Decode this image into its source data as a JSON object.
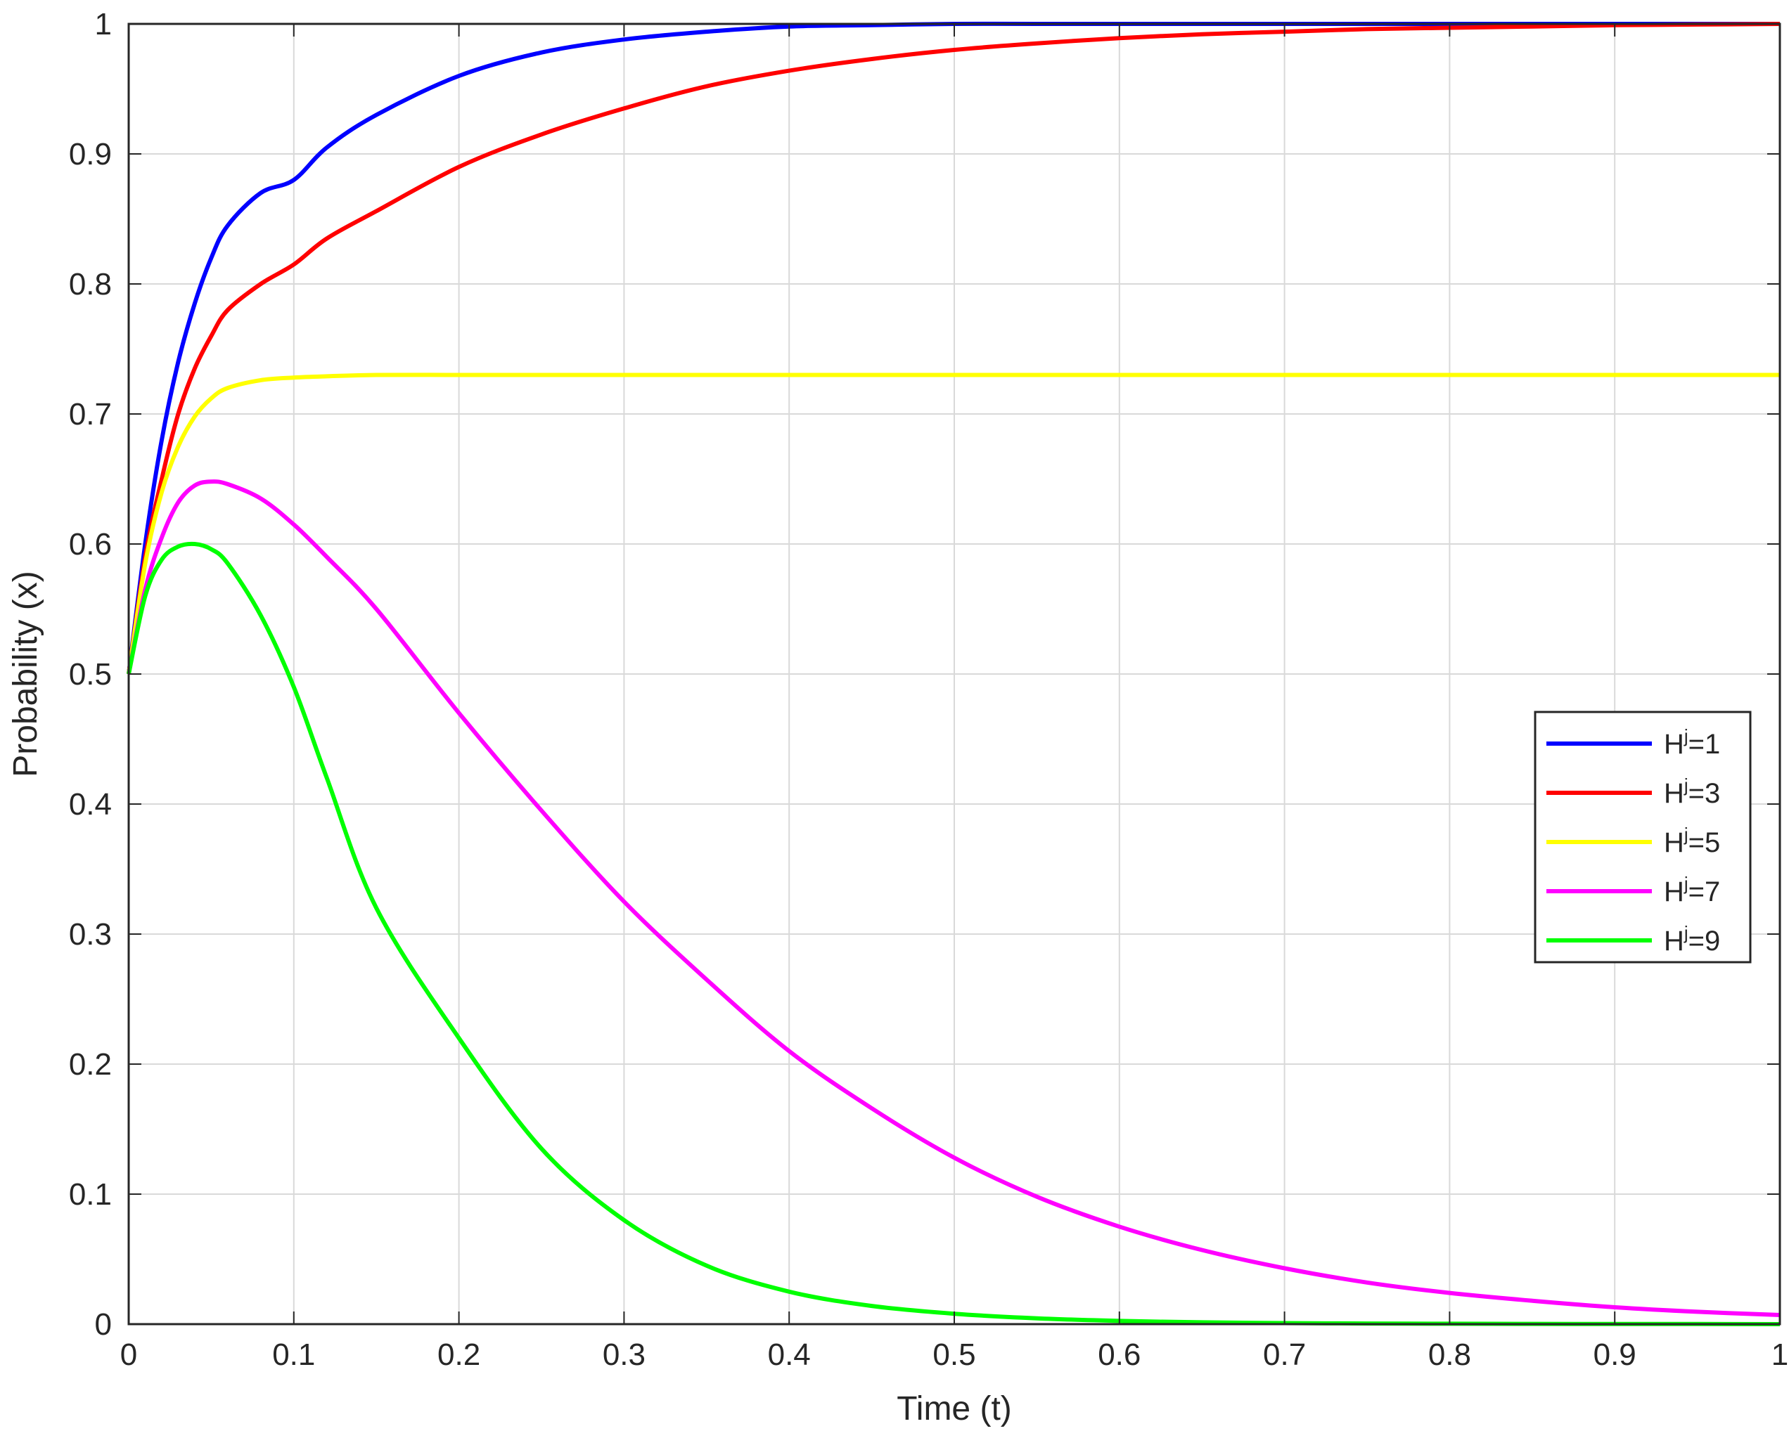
{
  "chart_data": {
    "type": "line",
    "title": "",
    "xlabel": "Time (t)",
    "ylabel": "Probability (x)",
    "xlim": [
      0,
      1
    ],
    "ylim": [
      0,
      1
    ],
    "xticks": [
      "0",
      "0.1",
      "0.2",
      "0.3",
      "0.4",
      "0.5",
      "0.6",
      "0.7",
      "0.8",
      "0.9",
      "1"
    ],
    "yticks": [
      "0",
      "0.1",
      "0.2",
      "0.3",
      "0.4",
      "0.5",
      "0.6",
      "0.7",
      "0.8",
      "0.9",
      "1"
    ],
    "grid": true,
    "legend_position": "right",
    "x": [
      0,
      0.01,
      0.02,
      0.03,
      0.04,
      0.05,
      0.06,
      0.08,
      0.1,
      0.12,
      0.15,
      0.2,
      0.25,
      0.3,
      0.35,
      0.4,
      0.45,
      0.5,
      0.55,
      0.6,
      0.65,
      0.7,
      0.75,
      0.8,
      0.85,
      0.9,
      0.95,
      1.0
    ],
    "series": [
      {
        "name_base": "H",
        "name_sup": "j",
        "name_rest": "=1",
        "color": "#0000ff",
        "values": [
          0.5,
          0.6,
          0.68,
          0.74,
          0.785,
          0.82,
          0.845,
          0.87,
          0.88,
          0.905,
          0.93,
          0.96,
          0.978,
          0.988,
          0.994,
          0.998,
          0.999,
          1.0,
          1.0,
          1.0,
          1.0,
          1.0,
          1.0,
          1.0,
          1.0,
          1.0,
          1.0,
          1.0
        ]
      },
      {
        "name_base": "H",
        "name_sup": "j",
        "name_rest": "=3",
        "color": "#ff0000",
        "values": [
          0.5,
          0.59,
          0.65,
          0.7,
          0.735,
          0.76,
          0.78,
          0.8,
          0.815,
          0.835,
          0.856,
          0.89,
          0.915,
          0.935,
          0.952,
          0.964,
          0.973,
          0.98,
          0.985,
          0.989,
          0.992,
          0.994,
          0.996,
          0.997,
          0.998,
          0.999,
          0.9995,
          1.0
        ]
      },
      {
        "name_base": "H",
        "name_sup": "j",
        "name_rest": "=5",
        "color": "#ffff00",
        "values": [
          0.5,
          0.585,
          0.64,
          0.675,
          0.698,
          0.712,
          0.72,
          0.726,
          0.728,
          0.729,
          0.73,
          0.73,
          0.73,
          0.73,
          0.73,
          0.73,
          0.73,
          0.73,
          0.73,
          0.73,
          0.73,
          0.73,
          0.73,
          0.73,
          0.73,
          0.73,
          0.73,
          0.73
        ]
      },
      {
        "name_base": "H",
        "name_sup": "j",
        "name_rest": "=7",
        "color": "#ff00ff",
        "values": [
          0.5,
          0.565,
          0.605,
          0.632,
          0.645,
          0.648,
          0.646,
          0.635,
          0.615,
          0.59,
          0.55,
          0.47,
          0.395,
          0.325,
          0.265,
          0.21,
          0.166,
          0.128,
          0.098,
          0.075,
          0.057,
          0.043,
          0.032,
          0.024,
          0.018,
          0.013,
          0.0095,
          0.007
        ]
      },
      {
        "name_base": "H",
        "name_sup": "j",
        "name_rest": "=9",
        "color": "#00ff00",
        "values": [
          0.5,
          0.56,
          0.588,
          0.598,
          0.6,
          0.596,
          0.585,
          0.545,
          0.49,
          0.42,
          0.32,
          0.22,
          0.135,
          0.08,
          0.045,
          0.025,
          0.014,
          0.008,
          0.0045,
          0.0025,
          0.0014,
          0.0008,
          0.0005,
          0.0003,
          0.0002,
          0.0001,
          0.0001,
          0.0
        ]
      }
    ]
  }
}
